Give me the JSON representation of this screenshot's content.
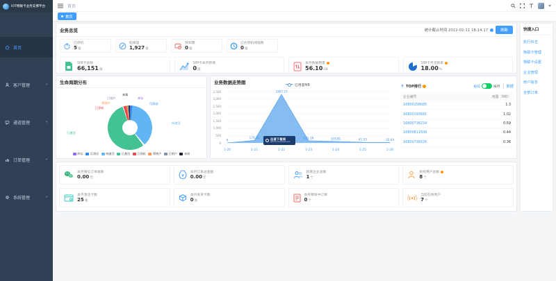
{
  "app": {
    "title": "IOT物联卡业务支撑平台"
  },
  "sidebar": {
    "items": [
      {
        "label": "首页",
        "icon": "home-icon"
      },
      {
        "label": "客户管理",
        "icon": "customer-icon"
      },
      {
        "label": "通道管理",
        "icon": "channel-icon"
      },
      {
        "label": "订单管理",
        "icon": "order-icon"
      },
      {
        "label": "系统管理",
        "icon": "system-icon"
      }
    ]
  },
  "topbar": {
    "breadcrumb": "首页",
    "tag": "首页"
  },
  "overview": {
    "title": "业务总览",
    "stat_time": "统计截止时间 2022-02-11 18:14:17",
    "refresh_label": "刷新",
    "mini_cards": [
      {
        "label": "已停机",
        "value": "5",
        "unit": "张",
        "icon": "power-icon",
        "color": "#53a8ff"
      },
      {
        "label": "超阈值",
        "value": "1,927",
        "unit": "张",
        "icon": "edit-circle-icon",
        "color": "#409eff"
      },
      {
        "label": "快到期",
        "value": "0",
        "unit": "张",
        "icon": "card-expire-icon",
        "color": "#f56c6c"
      },
      {
        "label": "已达停机阈值数",
        "value": "0",
        "unit": "张",
        "icon": "clock-icon",
        "color": "#409eff"
      }
    ],
    "big_cards": [
      {
        "label": "SIM卡总数",
        "value": "66,151",
        "unit": "张",
        "icon": "sim-icon",
        "color": "#43c393",
        "info": false
      },
      {
        "label": "SIM卡本月新增",
        "value": "0",
        "unit": "张",
        "icon": "trend-up-icon",
        "color": "#409eff",
        "info": false
      },
      {
        "label": "本月数据用量",
        "value": "56.10",
        "unit": "GB",
        "icon": "data-usage-icon",
        "color": "#f56c6c",
        "info": true
      },
      {
        "label": "SIM卡月活跃率",
        "value": "18.00",
        "unit": "%",
        "icon": "pie-icon",
        "color": "#1f6fd0",
        "info": true
      }
    ]
  },
  "lifecycle": {
    "title": "生命周期分布"
  },
  "trend": {
    "title": "业务数据走势图",
    "legend": "已用量MB",
    "rank_title": "TOP排行",
    "toggle_left": "按日",
    "toggle_right": "按月",
    "data_btn": "数据"
  },
  "watermark": {
    "line1": "迅速下载网",
    "line2": "www.xunsuxiazai.com"
  },
  "bottom_cards": [
    {
      "label": "本月微信订单收款",
      "value": "0.00",
      "unit": "元",
      "icon": "wechat-icon",
      "color": "#42b983",
      "info": false
    },
    {
      "label": "本月订单总金额",
      "value": "0.00",
      "unit": "元",
      "icon": "money-bag-icon",
      "color": "#409eff",
      "info": false
    },
    {
      "label": "新增企业总数",
      "value": "1",
      "unit": "个",
      "icon": "enterprise-icon",
      "color": "#409eff",
      "info": false
    },
    {
      "label": "系统用户总数",
      "value": "8",
      "unit": "个",
      "icon": "person-icon",
      "color": "#ff9f43",
      "info": true
    },
    {
      "label": "本月激活卡数",
      "value": "25",
      "unit": "张",
      "icon": "sim-card-icon",
      "color": "#36cfc9",
      "info": false
    },
    {
      "label": "本月发货卡数",
      "value": "0",
      "unit": "张",
      "icon": "package-icon",
      "color": "#409eff",
      "info": false
    },
    {
      "label": "本月审核中订单",
      "value": "0",
      "unit": "个",
      "icon": "audit-icon",
      "color": "#f56c6c",
      "info": false
    },
    {
      "label": "当前在线用户",
      "value": "7",
      "unit": "个",
      "icon": "online-icon",
      "color": "#ff9f43",
      "info": false
    }
  ],
  "quick": {
    "title": "快捷入口",
    "links": [
      "执行日志",
      "物联卡管理",
      "物联卡设置",
      "企业管理",
      "用户信息",
      "全部订单"
    ]
  },
  "chart_data": [
    {
      "type": "pie",
      "title": "生命周期分布",
      "labels": [
        "库存",
        "可测试",
        "待激活",
        "已激活",
        "已停机",
        "预销户",
        "已销户",
        "未知"
      ],
      "values_pct_est": [
        0.4,
        1.4,
        37.5,
        55.8,
        2.2,
        0.9,
        0.9,
        0.9
      ],
      "colors": [
        "#9266f9",
        "#2d8cf0",
        "#62b5f5",
        "#43c393",
        "#f0454f",
        "#ff9552",
        "#7e8fa8",
        "#1d2129"
      ],
      "legend_position": "bottom",
      "note": "donut chart; percentages estimated from arc angles"
    },
    {
      "type": "area",
      "title": "业务数据走势图",
      "x": [
        "1-20",
        "1-21",
        "1-22",
        "1-23",
        "1-24",
        "1-25",
        "1-26"
      ],
      "series": [
        {
          "name": "已用量MB",
          "values": [
            0,
            174.45,
            3307.27,
            151.18,
            103.81,
            41.55,
            35.04
          ]
        }
      ],
      "ylim": [
        0,
        3500
      ],
      "ytick_step": 500,
      "grid": true,
      "legend_position": "top"
    },
    {
      "type": "table",
      "title": "TOP排行",
      "headers": [
        "企业编号",
        "用量（MB）"
      ],
      "rows": [
        [
          "16800158685",
          "1.3"
        ],
        [
          "16800193681",
          "1.02"
        ],
        [
          "16800738234",
          "0.59"
        ],
        [
          "16800811508",
          "0.44"
        ],
        [
          "16800736526",
          "0.36"
        ]
      ]
    }
  ]
}
